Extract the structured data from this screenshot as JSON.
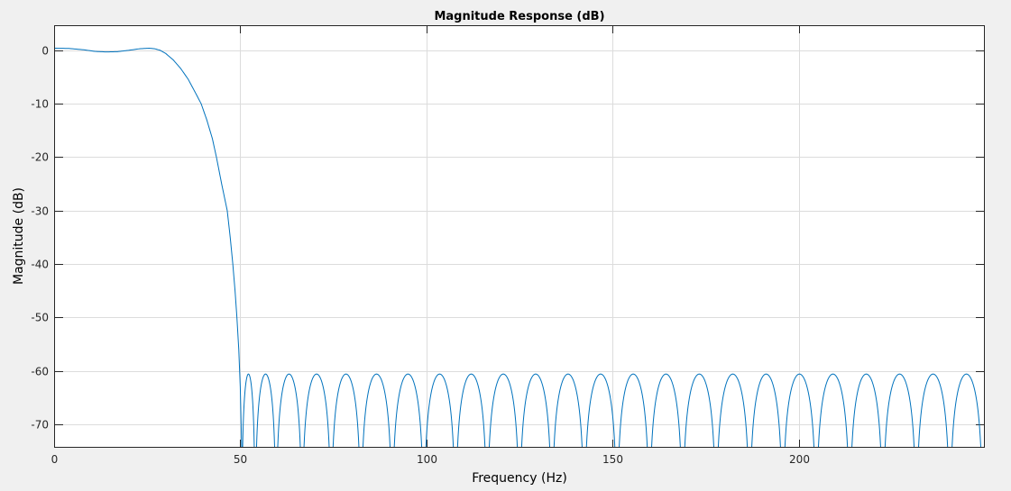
{
  "chart_data": {
    "type": "line",
    "title": "Magnitude Response (dB)",
    "xlabel": "Frequency (Hz)",
    "ylabel": "Magnitude (dB)",
    "xlim": [
      0,
      250
    ],
    "ylim": [
      -74.4,
      4.7
    ],
    "xticks": [
      0,
      50,
      100,
      150,
      200
    ],
    "yticks": [
      0,
      -10,
      -20,
      -30,
      -40,
      -50,
      -60,
      -70
    ],
    "xtick_labels": [
      "0",
      "50",
      "100",
      "150",
      "200"
    ],
    "ytick_labels": [
      "0",
      "-10",
      "-20",
      "-30",
      "-40",
      "-50",
      "-60",
      "-70"
    ],
    "grid": true,
    "line_color": "#0072bd",
    "passband_points": [
      [
        0,
        0.4
      ],
      [
        4,
        0.35
      ],
      [
        8,
        0.1
      ],
      [
        11,
        -0.2
      ],
      [
        14,
        -0.3
      ],
      [
        17,
        -0.25
      ],
      [
        20,
        0.0
      ],
      [
        23,
        0.3
      ],
      [
        25.5,
        0.4
      ],
      [
        27,
        0.3
      ],
      [
        28.5,
        0.0
      ],
      [
        30,
        -0.6
      ],
      [
        32,
        -1.8
      ],
      [
        34,
        -3.4
      ],
      [
        36,
        -5.4
      ],
      [
        38,
        -8.0
      ],
      [
        39.5,
        -10.0
      ],
      [
        41,
        -13.0
      ],
      [
        42.5,
        -16.5
      ],
      [
        43.6,
        -20.0
      ],
      [
        45,
        -25.0
      ],
      [
        46.5,
        -30.0
      ],
      [
        47.3,
        -35.0
      ],
      [
        48,
        -40.0
      ],
      [
        48.6,
        -45.0
      ],
      [
        49.1,
        -50.0
      ],
      [
        49.6,
        -56.0
      ],
      [
        50.0,
        -63.0
      ],
      [
        50.4,
        -75.0
      ]
    ],
    "stopband_peak_db": -60.6,
    "stopband_zeros_hz": [
      50.4,
      54.0,
      59.6,
      66.6,
      74.4,
      82.4,
      90.8,
      99.3,
      107.8,
      116.3,
      125.0,
      133.7,
      142.4,
      151.2,
      159.9,
      168.8,
      177.8,
      186.8,
      195.7,
      204.7,
      213.7,
      222.6,
      231.6,
      240.6,
      249.5
    ]
  }
}
